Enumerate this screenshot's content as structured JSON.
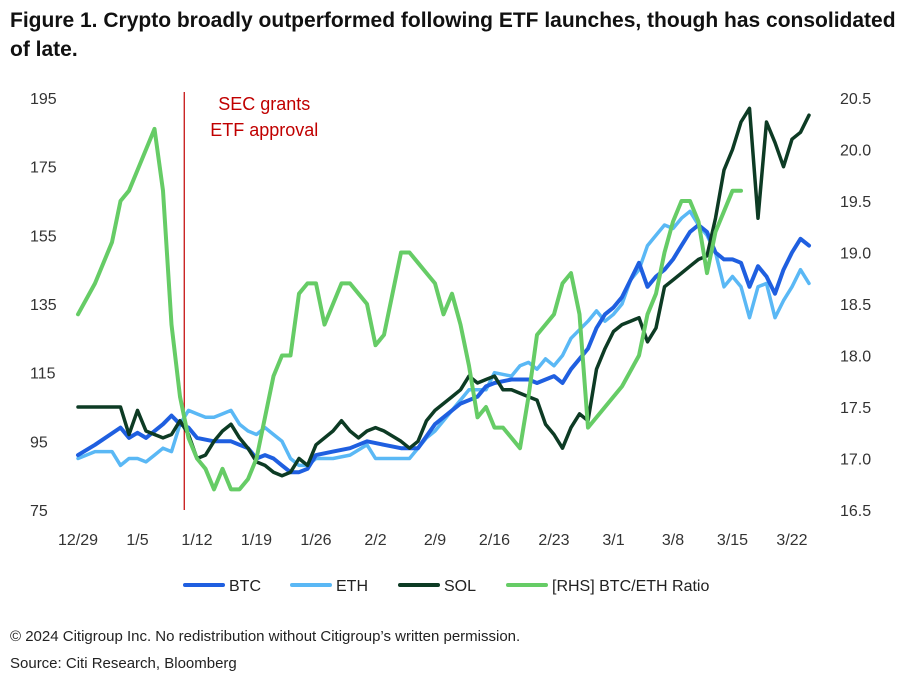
{
  "title": "Figure 1. Crypto broadly outperformed following ETF launches, though has consolidated of late.",
  "footer": {
    "copyright": "© 2024 Citigroup Inc. No redistribution without Citigroup’s written permission.",
    "source": "Source: Citi Research, Bloomberg"
  },
  "chart_data": {
    "type": "line",
    "title": "Figure 1. Crypto broadly outperformed following ETF launches, though has consolidated of late.",
    "x_range": [
      0,
      88
    ],
    "x_ticks": [
      {
        "x": 0,
        "label": "12/29"
      },
      {
        "x": 7,
        "label": "1/5"
      },
      {
        "x": 14,
        "label": "1/12"
      },
      {
        "x": 21,
        "label": "1/19"
      },
      {
        "x": 28,
        "label": "1/26"
      },
      {
        "x": 35,
        "label": "2/2"
      },
      {
        "x": 42,
        "label": "2/9"
      },
      {
        "x": 49,
        "label": "2/16"
      },
      {
        "x": 56,
        "label": "2/23"
      },
      {
        "x": 63,
        "label": "3/1"
      },
      {
        "x": 70,
        "label": "3/8"
      },
      {
        "x": 77,
        "label": "3/15"
      },
      {
        "x": 84,
        "label": "3/22"
      }
    ],
    "y_left": {
      "min": 75,
      "max": 195,
      "ticks": [
        "75",
        "95",
        "115",
        "135",
        "155",
        "175",
        "195"
      ]
    },
    "y_right": {
      "min": 16.5,
      "max": 20.5,
      "ticks": [
        "16.5",
        "17.0",
        "17.5",
        "18.0",
        "18.5",
        "19.0",
        "19.5",
        "20.0",
        "20.5"
      ]
    },
    "annotation": {
      "x": 12.5,
      "lines": [
        "SEC grants",
        "ETF approval"
      ],
      "color": "#c00000"
    },
    "series": [
      {
        "name": "BTC",
        "axis": "left",
        "color": "#1f5fe0",
        "width": 4,
        "points": [
          [
            0,
            91
          ],
          [
            2,
            94
          ],
          [
            5,
            99
          ],
          [
            6,
            96
          ],
          [
            7,
            97.5
          ],
          [
            8,
            96
          ],
          [
            10,
            100
          ],
          [
            11,
            102.5
          ],
          [
            12,
            100
          ],
          [
            13,
            99
          ],
          [
            14,
            96
          ],
          [
            16,
            95
          ],
          [
            18,
            95
          ],
          [
            19,
            94
          ],
          [
            20,
            93
          ],
          [
            21,
            90
          ],
          [
            22,
            91
          ],
          [
            23,
            90
          ],
          [
            24,
            88
          ],
          [
            25,
            86
          ],
          [
            26,
            86
          ],
          [
            27,
            87
          ],
          [
            28,
            91
          ],
          [
            30,
            92
          ],
          [
            32,
            93
          ],
          [
            34,
            95
          ],
          [
            36,
            94
          ],
          [
            38,
            93
          ],
          [
            40,
            93
          ],
          [
            42,
            100
          ],
          [
            44,
            104
          ],
          [
            45,
            106
          ],
          [
            47,
            108
          ],
          [
            48,
            111
          ],
          [
            49,
            112
          ],
          [
            51,
            113
          ],
          [
            53,
            113
          ],
          [
            54,
            112
          ],
          [
            56,
            114
          ],
          [
            57,
            112
          ],
          [
            58,
            116
          ],
          [
            60,
            122
          ],
          [
            61,
            128
          ],
          [
            62,
            132
          ],
          [
            63,
            134
          ],
          [
            64,
            137
          ],
          [
            65,
            142
          ],
          [
            66,
            147
          ],
          [
            67,
            140
          ],
          [
            68,
            143
          ],
          [
            69,
            145
          ],
          [
            70,
            148
          ],
          [
            71,
            152
          ],
          [
            72,
            156
          ],
          [
            73,
            158
          ],
          [
            74,
            156
          ],
          [
            75,
            150
          ],
          [
            76,
            148
          ],
          [
            77,
            148
          ],
          [
            78,
            147
          ],
          [
            79,
            140
          ],
          [
            80,
            146
          ],
          [
            81,
            143
          ],
          [
            82,
            138
          ],
          [
            83,
            145
          ],
          [
            84,
            150
          ],
          [
            85,
            154
          ],
          [
            86,
            152
          ]
        ]
      },
      {
        "name": "ETH",
        "axis": "left",
        "color": "#5ab8f5",
        "width": 3.5,
        "points": [
          [
            0,
            90
          ],
          [
            2,
            92
          ],
          [
            4,
            92
          ],
          [
            5,
            88
          ],
          [
            6,
            90
          ],
          [
            7,
            90
          ],
          [
            8,
            89
          ],
          [
            9,
            91
          ],
          [
            10,
            93
          ],
          [
            11,
            92
          ],
          [
            12,
            100
          ],
          [
            13,
            104
          ],
          [
            14,
            103
          ],
          [
            15,
            102
          ],
          [
            16,
            102
          ],
          [
            17,
            103
          ],
          [
            18,
            104
          ],
          [
            19,
            100
          ],
          [
            20,
            98
          ],
          [
            21,
            97
          ],
          [
            22,
            99
          ],
          [
            23,
            97
          ],
          [
            24,
            95
          ],
          [
            25,
            90
          ],
          [
            26,
            88
          ],
          [
            27,
            88
          ],
          [
            28,
            90
          ],
          [
            30,
            90
          ],
          [
            32,
            91
          ],
          [
            34,
            94
          ],
          [
            35,
            90
          ],
          [
            37,
            90
          ],
          [
            39,
            90
          ],
          [
            41,
            96
          ],
          [
            42,
            98
          ],
          [
            44,
            104
          ],
          [
            46,
            110
          ],
          [
            48,
            110
          ],
          [
            49,
            115
          ],
          [
            51,
            114
          ],
          [
            52,
            117
          ],
          [
            53,
            118
          ],
          [
            54,
            116
          ],
          [
            55,
            119
          ],
          [
            56,
            117
          ],
          [
            57,
            120
          ],
          [
            58,
            125
          ],
          [
            60,
            130
          ],
          [
            61,
            133
          ],
          [
            62,
            130
          ],
          [
            63,
            132
          ],
          [
            64,
            135
          ],
          [
            65,
            142
          ],
          [
            66,
            145
          ],
          [
            67,
            152
          ],
          [
            68,
            155
          ],
          [
            69,
            158
          ],
          [
            70,
            157
          ],
          [
            71,
            160
          ],
          [
            72,
            162
          ],
          [
            73,
            158
          ],
          [
            74,
            155
          ],
          [
            75,
            150
          ],
          [
            76,
            140
          ],
          [
            77,
            143
          ],
          [
            78,
            140
          ],
          [
            79,
            131
          ],
          [
            80,
            140
          ],
          [
            81,
            141
          ],
          [
            82,
            131
          ],
          [
            83,
            136
          ],
          [
            84,
            140
          ],
          [
            85,
            145
          ],
          [
            86,
            141
          ]
        ]
      },
      {
        "name": "SOL",
        "axis": "left",
        "color": "#0d3b24",
        "width": 3.5,
        "points": [
          [
            0,
            105
          ],
          [
            2,
            105
          ],
          [
            5,
            105
          ],
          [
            6,
            97
          ],
          [
            7,
            104
          ],
          [
            8,
            98
          ],
          [
            9,
            97
          ],
          [
            10,
            96
          ],
          [
            11,
            97
          ],
          [
            12,
            101
          ],
          [
            13,
            97
          ],
          [
            14,
            90
          ],
          [
            15,
            91
          ],
          [
            16,
            95
          ],
          [
            17,
            98
          ],
          [
            18,
            100
          ],
          [
            19,
            96
          ],
          [
            20,
            93
          ],
          [
            21,
            89
          ],
          [
            22,
            88
          ],
          [
            23,
            86
          ],
          [
            24,
            85
          ],
          [
            25,
            86
          ],
          [
            26,
            90
          ],
          [
            27,
            88
          ],
          [
            28,
            94
          ],
          [
            30,
            98
          ],
          [
            31,
            101
          ],
          [
            32,
            98
          ],
          [
            33,
            96
          ],
          [
            34,
            98
          ],
          [
            35,
            99
          ],
          [
            36,
            98
          ],
          [
            38,
            95
          ],
          [
            39,
            93
          ],
          [
            40,
            95
          ],
          [
            41,
            101
          ],
          [
            42,
            104
          ],
          [
            44,
            108
          ],
          [
            45,
            110
          ],
          [
            46,
            114
          ],
          [
            47,
            112
          ],
          [
            48,
            113
          ],
          [
            49,
            114
          ],
          [
            50,
            110
          ],
          [
            51,
            110
          ],
          [
            52,
            109
          ],
          [
            53,
            108
          ],
          [
            54,
            107
          ],
          [
            55,
            100
          ],
          [
            56,
            97
          ],
          [
            57,
            93
          ],
          [
            58,
            99
          ],
          [
            59,
            103
          ],
          [
            60,
            101
          ],
          [
            61,
            116
          ],
          [
            62,
            122
          ],
          [
            63,
            127
          ],
          [
            64,
            129
          ],
          [
            65,
            130
          ],
          [
            66,
            131
          ],
          [
            67,
            124
          ],
          [
            68,
            128
          ],
          [
            69,
            140
          ],
          [
            70,
            142
          ],
          [
            71,
            144
          ],
          [
            72,
            146
          ],
          [
            73,
            148
          ],
          [
            74,
            149
          ],
          [
            75,
            160
          ],
          [
            76,
            174
          ],
          [
            77,
            180
          ],
          [
            78,
            188
          ],
          [
            79,
            192
          ],
          [
            80,
            160
          ],
          [
            81,
            188
          ],
          [
            82,
            182
          ],
          [
            83,
            175
          ],
          [
            84,
            183
          ],
          [
            85,
            185
          ],
          [
            86,
            190
          ]
        ]
      },
      {
        "name": "[RHS] BTC/ETH Ratio",
        "axis": "right",
        "color": "#66cc66",
        "width": 4,
        "points": [
          [
            0,
            18.4
          ],
          [
            2,
            18.7
          ],
          [
            4,
            19.1
          ],
          [
            5,
            19.5
          ],
          [
            6,
            19.6
          ],
          [
            7,
            19.8
          ],
          [
            8,
            20.0
          ],
          [
            9,
            20.2
          ],
          [
            10,
            19.6
          ],
          [
            11,
            18.3
          ],
          [
            12,
            17.6
          ],
          [
            13,
            17.2
          ],
          [
            14,
            17.0
          ],
          [
            15,
            16.9
          ],
          [
            16,
            16.7
          ],
          [
            17,
            16.9
          ],
          [
            18,
            16.7
          ],
          [
            19,
            16.7
          ],
          [
            20,
            16.8
          ],
          [
            21,
            17.0
          ],
          [
            22,
            17.4
          ],
          [
            23,
            17.8
          ],
          [
            24,
            18.0
          ],
          [
            25,
            18.0
          ],
          [
            26,
            18.6
          ],
          [
            27,
            18.7
          ],
          [
            28,
            18.7
          ],
          [
            29,
            18.3
          ],
          [
            30,
            18.5
          ],
          [
            31,
            18.7
          ],
          [
            32,
            18.7
          ],
          [
            33,
            18.6
          ],
          [
            34,
            18.5
          ],
          [
            35,
            18.1
          ],
          [
            36,
            18.2
          ],
          [
            37,
            18.6
          ],
          [
            38,
            19.0
          ],
          [
            39,
            19.0
          ],
          [
            40,
            18.9
          ],
          [
            41,
            18.8
          ],
          [
            42,
            18.7
          ],
          [
            43,
            18.4
          ],
          [
            44,
            18.6
          ],
          [
            45,
            18.3
          ],
          [
            46,
            17.9
          ],
          [
            47,
            17.4
          ],
          [
            48,
            17.5
          ],
          [
            49,
            17.3
          ],
          [
            50,
            17.3
          ],
          [
            51,
            17.2
          ],
          [
            52,
            17.1
          ],
          [
            53,
            17.6
          ],
          [
            54,
            18.2
          ],
          [
            55,
            18.3
          ],
          [
            56,
            18.4
          ],
          [
            57,
            18.7
          ],
          [
            58,
            18.8
          ],
          [
            59,
            18.4
          ],
          [
            60,
            17.3
          ],
          [
            62,
            17.5
          ],
          [
            64,
            17.7
          ],
          [
            66,
            18.0
          ],
          [
            67,
            18.4
          ],
          [
            68,
            18.6
          ],
          [
            69,
            19.0
          ],
          [
            70,
            19.3
          ],
          [
            71,
            19.5
          ],
          [
            72,
            19.5
          ],
          [
            73,
            19.3
          ],
          [
            74,
            18.8
          ],
          [
            75,
            19.2
          ],
          [
            76,
            19.4
          ],
          [
            77,
            19.6
          ],
          [
            78,
            19.6
          ]
        ]
      }
    ],
    "legend": [
      {
        "label": "BTC",
        "color": "#1f5fe0"
      },
      {
        "label": "ETH",
        "color": "#5ab8f5"
      },
      {
        "label": "SOL",
        "color": "#0d3b24"
      },
      {
        "label": "[RHS] BTC/ETH Ratio",
        "color": "#66cc66"
      }
    ]
  }
}
